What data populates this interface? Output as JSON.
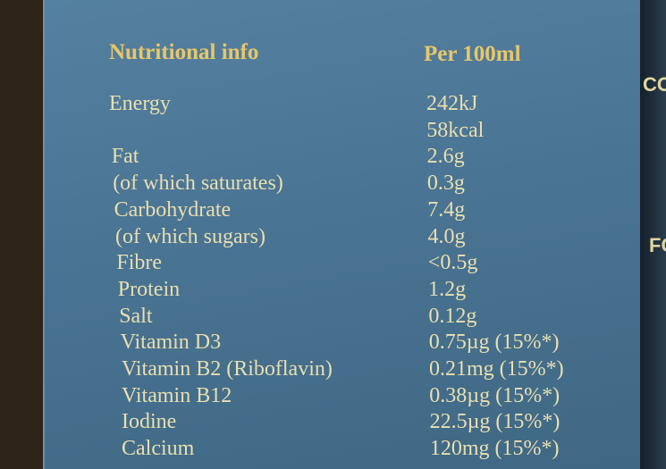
{
  "header": {
    "title": "Nutritional info",
    "column": "Per 100ml"
  },
  "rows": [
    {
      "label": "Energy",
      "values": [
        "242kJ",
        "58kcal"
      ]
    },
    {
      "label": "Fat",
      "values": [
        "2.6g"
      ]
    },
    {
      "label": "(of which saturates)",
      "values": [
        "0.3g"
      ]
    },
    {
      "label": "Carbohydrate",
      "values": [
        "7.4g"
      ]
    },
    {
      "label": "(of which sugars)",
      "values": [
        "4.0g"
      ]
    },
    {
      "label": "Fibre",
      "values": [
        "<0.5g"
      ]
    },
    {
      "label": "Protein",
      "values": [
        "1.2g"
      ]
    },
    {
      "label": "Salt",
      "values": [
        "0.12g"
      ]
    },
    {
      "label": "Vitamin D3",
      "values": [
        "0.75µg (15%*)"
      ]
    },
    {
      "label": "Vitamin B2 (Riboflavin)",
      "values": [
        "0.21mg (15%*)"
      ]
    },
    {
      "label": "Vitamin B12",
      "values": [
        "0.38µg (15%*)"
      ]
    },
    {
      "label": "Iodine",
      "values": [
        "22.5µg (15%*)"
      ]
    },
    {
      "label": "Calcium",
      "values": [
        "120mg (15%*)"
      ]
    }
  ],
  "side_text": [
    "CO",
    "FC"
  ]
}
